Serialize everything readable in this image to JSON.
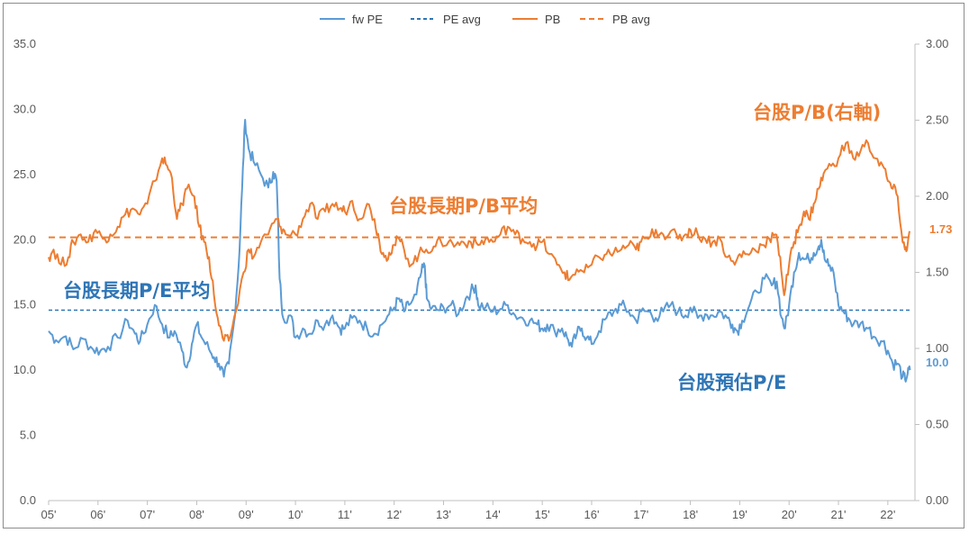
{
  "chart_data": {
    "type": "line",
    "legend": [
      {
        "label": "fw PE",
        "color": "#5b9bd5",
        "dash": false
      },
      {
        "label": "PE avg",
        "color": "#2e75b6",
        "dash": true
      },
      {
        "label": "PB",
        "color": "#ed7d31",
        "dash": false
      },
      {
        "label": "PB avg",
        "color": "#ed7d31",
        "dash": true
      }
    ],
    "legend_position": "top-center",
    "x_labels": [
      "05'",
      "06'",
      "07'",
      "08'",
      "09'",
      "10'",
      "11'",
      "12'",
      "13'",
      "14'",
      "15'",
      "16'",
      "17'",
      "18'",
      "19'",
      "20'",
      "21'",
      "22'"
    ],
    "y_left": {
      "min": 0,
      "max": 35,
      "ticks": [
        "0.0",
        "5.0",
        "10.0",
        "15.0",
        "20.0",
        "25.0",
        "30.0",
        "35.0"
      ]
    },
    "y_right": {
      "min": 0,
      "max": 3.0,
      "ticks": [
        "0.00",
        "0.50",
        "1.00",
        "1.50",
        "2.00",
        "2.50",
        "3.00"
      ]
    },
    "grid": false,
    "pe_avg": 14.6,
    "pb_avg": 1.73,
    "series": [
      {
        "name": "fw PE",
        "axis": "left",
        "points": [
          [
            2005.0,
            13.0
          ],
          [
            2005.15,
            12.3
          ],
          [
            2005.35,
            12.6
          ],
          [
            2005.5,
            11.6
          ],
          [
            2005.7,
            12.4
          ],
          [
            2005.9,
            11.6
          ],
          [
            2006.05,
            11.5
          ],
          [
            2006.2,
            11.8
          ],
          [
            2006.4,
            12.5
          ],
          [
            2006.6,
            13.8
          ],
          [
            2006.75,
            12.8
          ],
          [
            2006.85,
            12.2
          ],
          [
            2007.0,
            13.5
          ],
          [
            2007.15,
            15.0
          ],
          [
            2007.3,
            13.5
          ],
          [
            2007.45,
            12.5
          ],
          [
            2007.55,
            13.0
          ],
          [
            2007.7,
            11.5
          ],
          [
            2007.8,
            10.2
          ],
          [
            2007.9,
            12.0
          ],
          [
            2008.0,
            13.5
          ],
          [
            2008.1,
            12.5
          ],
          [
            2008.25,
            11.6
          ],
          [
            2008.35,
            11.0
          ],
          [
            2008.45,
            10.5
          ],
          [
            2008.55,
            9.5
          ],
          [
            2008.65,
            10.5
          ],
          [
            2008.75,
            13.5
          ],
          [
            2008.85,
            18.0
          ],
          [
            2008.92,
            24.0
          ],
          [
            2008.98,
            29.2
          ],
          [
            2009.05,
            27.0
          ],
          [
            2009.15,
            26.0
          ],
          [
            2009.3,
            25.0
          ],
          [
            2009.45,
            24.0
          ],
          [
            2009.55,
            25.2
          ],
          [
            2009.62,
            24.5
          ],
          [
            2009.68,
            17.0
          ],
          [
            2009.75,
            14.0
          ],
          [
            2009.9,
            14.2
          ],
          [
            2010.0,
            12.5
          ],
          [
            2010.15,
            13.2
          ],
          [
            2010.3,
            12.8
          ],
          [
            2010.45,
            13.8
          ],
          [
            2010.6,
            13.5
          ],
          [
            2010.75,
            14.2
          ],
          [
            2010.9,
            13.2
          ],
          [
            2011.0,
            13.2
          ],
          [
            2011.15,
            14.0
          ],
          [
            2011.3,
            13.8
          ],
          [
            2011.45,
            13.2
          ],
          [
            2011.6,
            12.8
          ],
          [
            2011.75,
            13.5
          ],
          [
            2011.9,
            14.3
          ],
          [
            2012.0,
            14.8
          ],
          [
            2012.1,
            15.5
          ],
          [
            2012.2,
            14.5
          ],
          [
            2012.3,
            15.0
          ],
          [
            2012.45,
            15.8
          ],
          [
            2012.55,
            17.5
          ],
          [
            2012.62,
            18.0
          ],
          [
            2012.66,
            15.5
          ],
          [
            2012.75,
            14.7
          ],
          [
            2012.9,
            14.6
          ],
          [
            2013.0,
            14.8
          ],
          [
            2013.15,
            15.0
          ],
          [
            2013.3,
            14.3
          ],
          [
            2013.45,
            15.5
          ],
          [
            2013.55,
            16.0
          ],
          [
            2013.65,
            16.5
          ],
          [
            2013.7,
            15.0
          ],
          [
            2013.85,
            14.8
          ],
          [
            2014.0,
            14.5
          ],
          [
            2014.15,
            14.7
          ],
          [
            2014.3,
            15.0
          ],
          [
            2014.45,
            14.2
          ],
          [
            2014.6,
            14.0
          ],
          [
            2014.75,
            13.8
          ],
          [
            2014.9,
            13.5
          ],
          [
            2015.0,
            13.2
          ],
          [
            2015.1,
            13.5
          ],
          [
            2015.25,
            13.0
          ],
          [
            2015.4,
            13.2
          ],
          [
            2015.5,
            12.5
          ],
          [
            2015.6,
            11.8
          ],
          [
            2015.7,
            12.8
          ],
          [
            2015.8,
            13.2
          ],
          [
            2015.9,
            12.5
          ],
          [
            2016.0,
            12.0
          ],
          [
            2016.15,
            13.0
          ],
          [
            2016.3,
            14.0
          ],
          [
            2016.45,
            14.5
          ],
          [
            2016.6,
            15.0
          ],
          [
            2016.75,
            14.5
          ],
          [
            2016.9,
            13.8
          ],
          [
            2017.0,
            14.5
          ],
          [
            2017.15,
            14.5
          ],
          [
            2017.3,
            14.0
          ],
          [
            2017.45,
            14.5
          ],
          [
            2017.6,
            15.0
          ],
          [
            2017.75,
            14.5
          ],
          [
            2017.9,
            14.2
          ],
          [
            2018.0,
            14.8
          ],
          [
            2018.15,
            14.0
          ],
          [
            2018.3,
            14.3
          ],
          [
            2018.45,
            14.2
          ],
          [
            2018.6,
            14.5
          ],
          [
            2018.75,
            14.0
          ],
          [
            2018.85,
            13.5
          ],
          [
            2018.95,
            13.0
          ],
          [
            2019.05,
            13.8
          ],
          [
            2019.2,
            15.0
          ],
          [
            2019.35,
            16.0
          ],
          [
            2019.5,
            17.0
          ],
          [
            2019.65,
            16.5
          ],
          [
            2019.75,
            16.8
          ],
          [
            2019.85,
            14.0
          ],
          [
            2019.92,
            13.2
          ],
          [
            2020.0,
            15.0
          ],
          [
            2020.1,
            17.5
          ],
          [
            2020.2,
            19.0
          ],
          [
            2020.3,
            18.5
          ],
          [
            2020.4,
            18.5
          ],
          [
            2020.5,
            19.0
          ],
          [
            2020.6,
            19.5
          ],
          [
            2020.65,
            20.0
          ],
          [
            2020.72,
            18.5
          ],
          [
            2020.8,
            18.0
          ],
          [
            2020.9,
            17.5
          ],
          [
            2021.0,
            15.0
          ],
          [
            2021.1,
            14.5
          ],
          [
            2021.2,
            14.0
          ],
          [
            2021.3,
            13.5
          ],
          [
            2021.45,
            13.6
          ],
          [
            2021.6,
            13.2
          ],
          [
            2021.75,
            12.5
          ],
          [
            2021.9,
            12.2
          ],
          [
            2022.0,
            11.5
          ],
          [
            2022.1,
            10.5
          ],
          [
            2022.2,
            10.5
          ],
          [
            2022.3,
            9.5
          ],
          [
            2022.35,
            9.3
          ],
          [
            2022.4,
            9.7
          ],
          [
            2022.45,
            10.0
          ]
        ]
      },
      {
        "name": "PB",
        "axis": "right",
        "points": [
          [
            2005.0,
            1.6
          ],
          [
            2005.1,
            1.65
          ],
          [
            2005.25,
            1.55
          ],
          [
            2005.4,
            1.6
          ],
          [
            2005.5,
            1.7
          ],
          [
            2005.65,
            1.75
          ],
          [
            2005.8,
            1.7
          ],
          [
            2005.95,
            1.78
          ],
          [
            2006.1,
            1.72
          ],
          [
            2006.25,
            1.75
          ],
          [
            2006.4,
            1.8
          ],
          [
            2006.55,
            1.88
          ],
          [
            2006.7,
            1.92
          ],
          [
            2006.85,
            1.88
          ],
          [
            2007.0,
            1.95
          ],
          [
            2007.15,
            2.1
          ],
          [
            2007.3,
            2.25
          ],
          [
            2007.4,
            2.2
          ],
          [
            2007.5,
            2.12
          ],
          [
            2007.6,
            1.85
          ],
          [
            2007.7,
            1.95
          ],
          [
            2007.8,
            2.05
          ],
          [
            2007.95,
            2.0
          ],
          [
            2008.05,
            1.8
          ],
          [
            2008.15,
            1.7
          ],
          [
            2008.25,
            1.6
          ],
          [
            2008.35,
            1.35
          ],
          [
            2008.45,
            1.15
          ],
          [
            2008.55,
            1.05
          ],
          [
            2008.65,
            1.05
          ],
          [
            2008.8,
            1.25
          ],
          [
            2008.95,
            1.5
          ],
          [
            2009.05,
            1.65
          ],
          [
            2009.15,
            1.6
          ],
          [
            2009.3,
            1.7
          ],
          [
            2009.45,
            1.75
          ],
          [
            2009.6,
            1.85
          ],
          [
            2009.7,
            1.8
          ],
          [
            2009.8,
            1.75
          ],
          [
            2010.0,
            1.75
          ],
          [
            2010.15,
            1.85
          ],
          [
            2010.3,
            1.95
          ],
          [
            2010.45,
            1.85
          ],
          [
            2010.6,
            1.9
          ],
          [
            2010.75,
            1.95
          ],
          [
            2010.9,
            1.92
          ],
          [
            2011.0,
            1.9
          ],
          [
            2011.15,
            1.97
          ],
          [
            2011.3,
            1.85
          ],
          [
            2011.45,
            1.95
          ],
          [
            2011.6,
            1.85
          ],
          [
            2011.7,
            1.7
          ],
          [
            2011.8,
            1.6
          ],
          [
            2011.9,
            1.63
          ],
          [
            2012.0,
            1.68
          ],
          [
            2012.1,
            1.72
          ],
          [
            2012.2,
            1.65
          ],
          [
            2012.35,
            1.55
          ],
          [
            2012.5,
            1.62
          ],
          [
            2012.65,
            1.65
          ],
          [
            2012.8,
            1.67
          ],
          [
            2012.95,
            1.7
          ],
          [
            2013.1,
            1.7
          ],
          [
            2013.25,
            1.68
          ],
          [
            2013.4,
            1.7
          ],
          [
            2013.55,
            1.7
          ],
          [
            2013.7,
            1.68
          ],
          [
            2013.85,
            1.72
          ],
          [
            2014.0,
            1.7
          ],
          [
            2014.15,
            1.75
          ],
          [
            2014.3,
            1.8
          ],
          [
            2014.45,
            1.75
          ],
          [
            2014.6,
            1.72
          ],
          [
            2014.75,
            1.7
          ],
          [
            2014.9,
            1.68
          ],
          [
            2015.0,
            1.7
          ],
          [
            2015.15,
            1.62
          ],
          [
            2015.3,
            1.55
          ],
          [
            2015.45,
            1.5
          ],
          [
            2015.55,
            1.45
          ],
          [
            2015.7,
            1.52
          ],
          [
            2015.85,
            1.5
          ],
          [
            2016.0,
            1.55
          ],
          [
            2016.15,
            1.6
          ],
          [
            2016.3,
            1.62
          ],
          [
            2016.45,
            1.63
          ],
          [
            2016.6,
            1.65
          ],
          [
            2016.75,
            1.68
          ],
          [
            2016.9,
            1.65
          ],
          [
            2017.0,
            1.7
          ],
          [
            2017.15,
            1.72
          ],
          [
            2017.3,
            1.78
          ],
          [
            2017.45,
            1.75
          ],
          [
            2017.6,
            1.77
          ],
          [
            2017.75,
            1.72
          ],
          [
            2017.9,
            1.75
          ],
          [
            2018.0,
            1.78
          ],
          [
            2018.15,
            1.75
          ],
          [
            2018.3,
            1.72
          ],
          [
            2018.45,
            1.7
          ],
          [
            2018.6,
            1.72
          ],
          [
            2018.75,
            1.6
          ],
          [
            2018.9,
            1.55
          ],
          [
            2019.0,
            1.62
          ],
          [
            2019.15,
            1.62
          ],
          [
            2019.3,
            1.65
          ],
          [
            2019.45,
            1.68
          ],
          [
            2019.6,
            1.72
          ],
          [
            2019.72,
            1.75
          ],
          [
            2019.82,
            1.6
          ],
          [
            2019.9,
            1.35
          ],
          [
            2020.0,
            1.55
          ],
          [
            2020.1,
            1.7
          ],
          [
            2020.2,
            1.8
          ],
          [
            2020.3,
            1.9
          ],
          [
            2020.4,
            1.85
          ],
          [
            2020.5,
            1.95
          ],
          [
            2020.6,
            2.05
          ],
          [
            2020.7,
            2.15
          ],
          [
            2020.85,
            2.2
          ],
          [
            2021.0,
            2.25
          ],
          [
            2021.15,
            2.35
          ],
          [
            2021.3,
            2.25
          ],
          [
            2021.45,
            2.3
          ],
          [
            2021.6,
            2.35
          ],
          [
            2021.75,
            2.25
          ],
          [
            2021.9,
            2.2
          ],
          [
            2022.0,
            2.1
          ],
          [
            2022.1,
            2.05
          ],
          [
            2022.2,
            2.0
          ],
          [
            2022.3,
            1.7
          ],
          [
            2022.35,
            1.65
          ],
          [
            2022.4,
            1.68
          ],
          [
            2022.45,
            1.76
          ]
        ]
      }
    ],
    "end_labels": [
      {
        "text": "1.73",
        "color": "#ed7d31"
      },
      {
        "text": "10.0",
        "color": "#5b9bd5"
      }
    ],
    "annotations": [
      {
        "text": "台股P/B(右軸)",
        "color": "#ed7d31"
      },
      {
        "text": "台股長期P/B平均",
        "color": "#ed7d31"
      },
      {
        "text": "台股長期P/E平均",
        "color": "#2e75b6"
      },
      {
        "text": "台股預估P/E",
        "color": "#2e75b6"
      }
    ]
  }
}
